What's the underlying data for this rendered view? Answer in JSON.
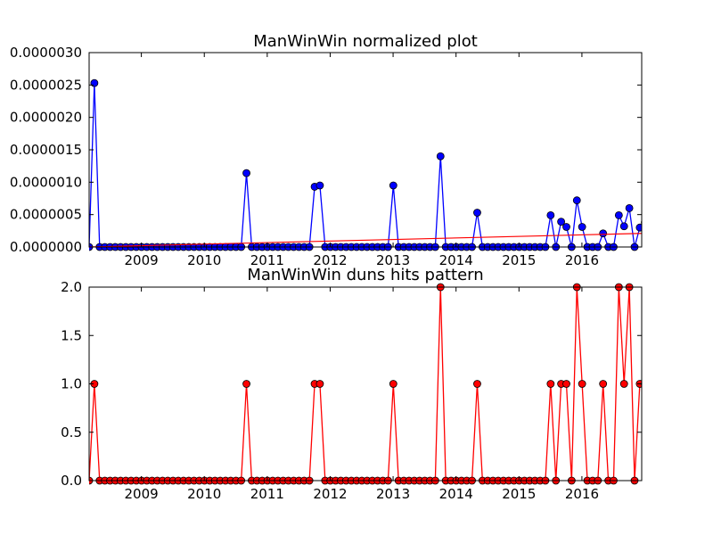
{
  "chart_data": [
    {
      "type": "line",
      "title": "ManWinWin normalized plot",
      "x_ticks": [
        "2009",
        "2010",
        "2011",
        "2012",
        "2013",
        "2014",
        "2015",
        "2016"
      ],
      "y_ticks": [
        "0.0000000",
        "0.0000005",
        "0.0000010",
        "0.0000015",
        "0.0000020",
        "0.0000025",
        "0.0000030"
      ],
      "ylim": [
        0,
        3e-06
      ],
      "xlim": [
        2008.17,
        2016.95
      ],
      "series": [
        {
          "color": "#0000ff",
          "marker": "circle",
          "baseline_step_months": 1,
          "peaks": [
            {
              "x": 2008.25,
              "y": 2.53e-06
            },
            {
              "x": 2010.67,
              "y": 1.14e-06
            },
            {
              "x": 2011.75,
              "y": 9.3e-07
            },
            {
              "x": 2011.83,
              "y": 9.5e-07
            },
            {
              "x": 2013.0,
              "y": 9.5e-07
            },
            {
              "x": 2013.75,
              "y": 1.4e-06
            },
            {
              "x": 2014.33,
              "y": 5.3e-07
            },
            {
              "x": 2015.5,
              "y": 4.9e-07
            },
            {
              "x": 2015.67,
              "y": 3.9e-07
            },
            {
              "x": 2015.75,
              "y": 3.1e-07
            },
            {
              "x": 2015.92,
              "y": 7.2e-07
            },
            {
              "x": 2016.0,
              "y": 3.1e-07
            },
            {
              "x": 2016.33,
              "y": 2.1e-07
            },
            {
              "x": 2016.58,
              "y": 4.9e-07
            },
            {
              "x": 2016.67,
              "y": 3.2e-07
            },
            {
              "x": 2016.75,
              "y": 6e-07
            },
            {
              "x": 2016.92,
              "y": 3e-07
            },
            {
              "x": 2017.0,
              "y": 3.8e-07
            }
          ]
        },
        {
          "type": "trend",
          "color": "#ff0000",
          "x": [
            2008.17,
            2016.95
          ],
          "y": [
            0.0,
            2.1e-07
          ]
        }
      ]
    },
    {
      "type": "line",
      "title": "ManWinWin duns hits pattern",
      "x_ticks": [
        "2009",
        "2010",
        "2011",
        "2012",
        "2013",
        "2014",
        "2015",
        "2016"
      ],
      "y_ticks": [
        "0.0",
        "0.5",
        "1.0",
        "1.5",
        "2.0"
      ],
      "ylim": [
        0,
        2
      ],
      "xlim": [
        2008.17,
        2016.95
      ],
      "series": [
        {
          "color": "#ff0000",
          "marker": "circle",
          "baseline_step_months": 1,
          "peaks": [
            {
              "x": 2008.25,
              "y": 1
            },
            {
              "x": 2010.67,
              "y": 1
            },
            {
              "x": 2011.75,
              "y": 1
            },
            {
              "x": 2011.83,
              "y": 1
            },
            {
              "x": 2013.0,
              "y": 1
            },
            {
              "x": 2013.75,
              "y": 2
            },
            {
              "x": 2014.33,
              "y": 1
            },
            {
              "x": 2015.5,
              "y": 1
            },
            {
              "x": 2015.67,
              "y": 1
            },
            {
              "x": 2015.75,
              "y": 1
            },
            {
              "x": 2015.92,
              "y": 2
            },
            {
              "x": 2016.0,
              "y": 1
            },
            {
              "x": 2016.33,
              "y": 1
            },
            {
              "x": 2016.58,
              "y": 2
            },
            {
              "x": 2016.67,
              "y": 1
            },
            {
              "x": 2016.75,
              "y": 2
            },
            {
              "x": 2016.92,
              "y": 1
            },
            {
              "x": 2017.0,
              "y": 1
            }
          ]
        }
      ]
    }
  ]
}
